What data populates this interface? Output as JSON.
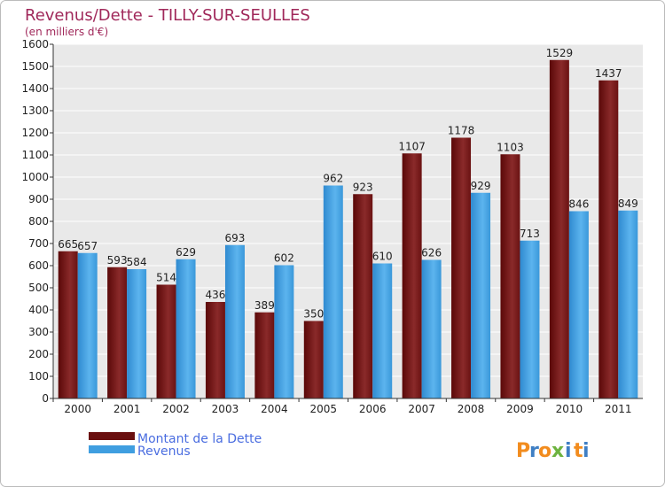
{
  "chart_data": {
    "type": "bar",
    "title": "Revenus/Dette - TILLY-SUR-SEULLES",
    "subtitle": "(en milliers d'€)",
    "categories": [
      "2000",
      "2001",
      "2002",
      "2003",
      "2004",
      "2005",
      "2006",
      "2007",
      "2008",
      "2009",
      "2010",
      "2011"
    ],
    "series": [
      {
        "name": "Montant de la Dette",
        "color": "#7a1a1a",
        "values": [
          665,
          593,
          514,
          436,
          389,
          350,
          923,
          1107,
          1178,
          1103,
          1529,
          1437
        ]
      },
      {
        "name": "Revenus",
        "color": "#3f9ee0",
        "values": [
          657,
          584,
          629,
          693,
          602,
          962,
          610,
          626,
          929,
          713,
          846,
          849
        ]
      }
    ],
    "ylim": [
      0,
      1600
    ],
    "yticks": [
      0,
      100,
      200,
      300,
      400,
      500,
      600,
      700,
      800,
      900,
      1000,
      1100,
      1200,
      1300,
      1400,
      1500,
      1600
    ],
    "xlabel": "",
    "ylabel": "",
    "grid": true,
    "legend_position": "bottom-left"
  },
  "brand": {
    "letters": [
      "P",
      "r",
      "o",
      "x",
      "i",
      "t",
      "i"
    ],
    "colors": [
      "#f28c1e",
      "#3f7fc4",
      "#f28c1e",
      "#6db33f",
      "#3f7fc4",
      "#f28c1e",
      "#3f7fc4"
    ]
  },
  "colors": {
    "title": "#a0285a",
    "legend_text": "#4a6de0"
  }
}
